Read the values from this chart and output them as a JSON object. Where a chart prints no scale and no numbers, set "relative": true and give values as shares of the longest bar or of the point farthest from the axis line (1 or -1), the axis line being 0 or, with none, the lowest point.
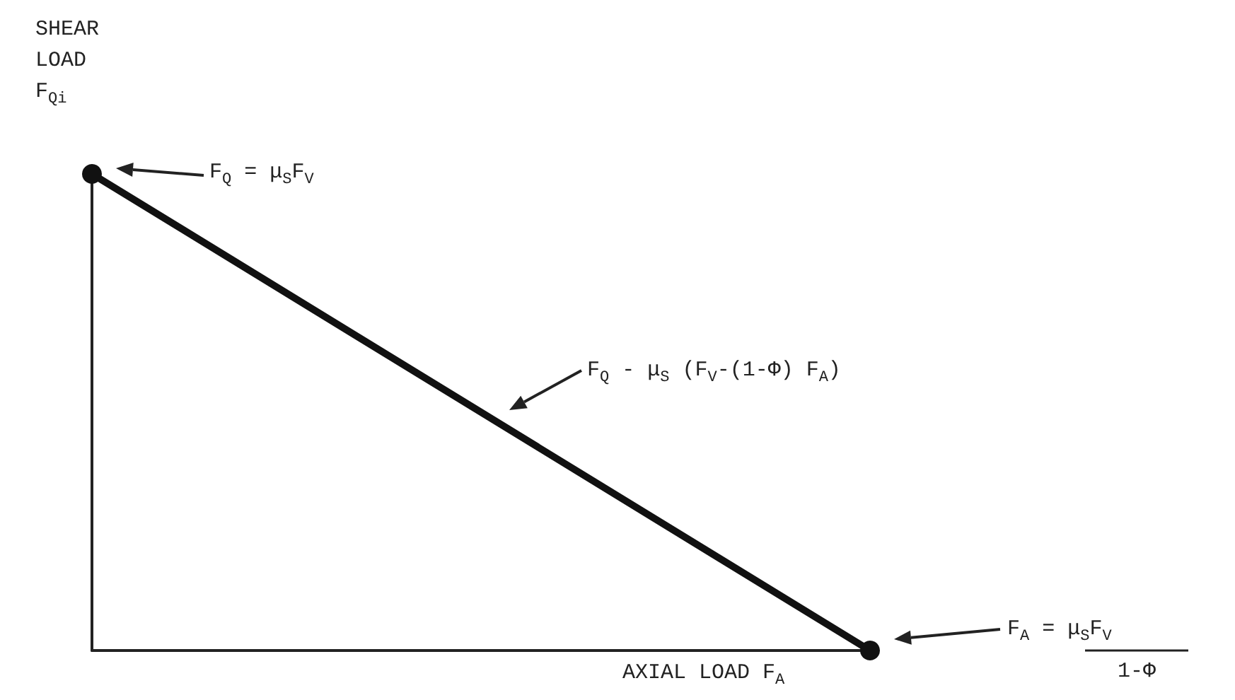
{
  "chart_data": {
    "type": "line",
    "relative": true,
    "categories": [
      null,
      null
    ],
    "series": [
      {
        "color": "#111111",
        "values": [
          1,
          0
        ]
      }
    ],
    "marker": "circle",
    "line_style": "solid",
    "grid": false,
    "ylabel": "SHEAR\nLOAD\nF$_{Qi}$",
    "xlabel": "AXIAL LOAD F$_{A}$",
    "annotations": [
      "F$_{Q}$ = μ$_{S}$F$_{V}$",
      "F$_{Q}$ - μ$_{S}$ (F$_{V}$-(1-Φ) F$_{A}$)",
      "F$_{A}$ = μ$_{S}$F$_{V}$\n1-Φ"
    ]
  }
}
